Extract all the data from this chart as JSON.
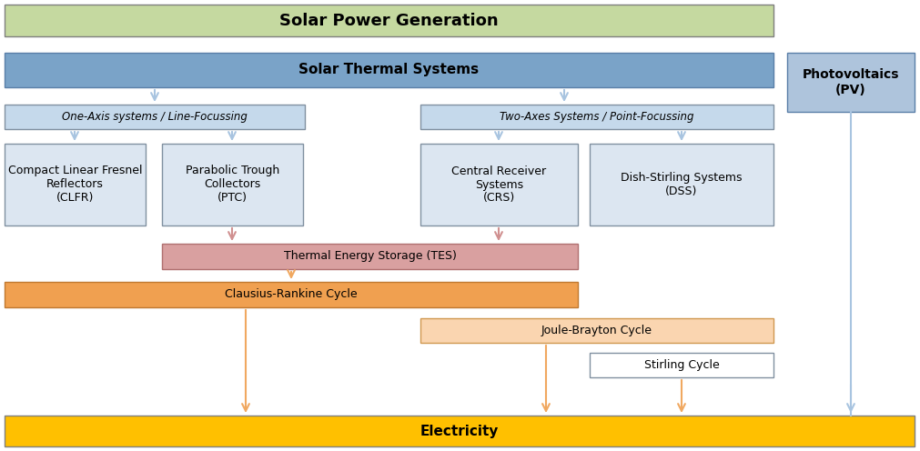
{
  "fig_w": 10.11,
  "fig_h": 4.96,
  "dpi": 100,
  "title": "Solar Power Generation",
  "title_bg": "#c5d9a0",
  "title_border": "#7f7f7f",
  "title_fontsize": 13,
  "solar_thermal_label": "Solar Thermal Systems",
  "solar_thermal_bg": "#7aa3c8",
  "solar_thermal_border": "#5a7fa8",
  "photovoltaics_label": "Photovoltaics\n(PV)",
  "photovoltaics_bg": "#aec4dc",
  "photovoltaics_border": "#5a7fa8",
  "one_axis_label": "One-Axis systems / Line-Focussing",
  "two_axes_label": "Two-Axes Systems / Point-Focussing",
  "subcategory_bg": "#c5d9eb",
  "subcategory_border": "#8090a0",
  "clfr_label": "Compact Linear Fresnel\nReflectors\n(CLFR)",
  "ptc_label": "Parabolic Trough\nCollectors\n(PTC)",
  "crs_label": "Central Receiver\nSystems\n(CRS)",
  "dss_label": "Dish-Stirling Systems\n(DSS)",
  "tech_bg": "#dce6f1",
  "tech_border": "#8090a0",
  "tes_label": "Thermal Energy Storage (TES)",
  "tes_bg": "#d9a0a0",
  "tes_border": "#b07070",
  "clausius_label": "Clausius-Rankine Cycle",
  "clausius_bg": "#f0a050",
  "clausius_border": "#c07830",
  "joule_label": "Joule-Brayton Cycle",
  "joule_bg": "#fad5b0",
  "joule_border": "#d09850",
  "stirling_label": "Stirling Cycle",
  "stirling_bg": "#ffffff",
  "stirling_border": "#8090a0",
  "electricity_label": "Electricity",
  "electricity_bg": "#ffc000",
  "electricity_border": "#7f7f7f",
  "arrow_blue": "#a8c4e0",
  "arrow_red": "#d09090",
  "arrow_orange": "#f0a860"
}
